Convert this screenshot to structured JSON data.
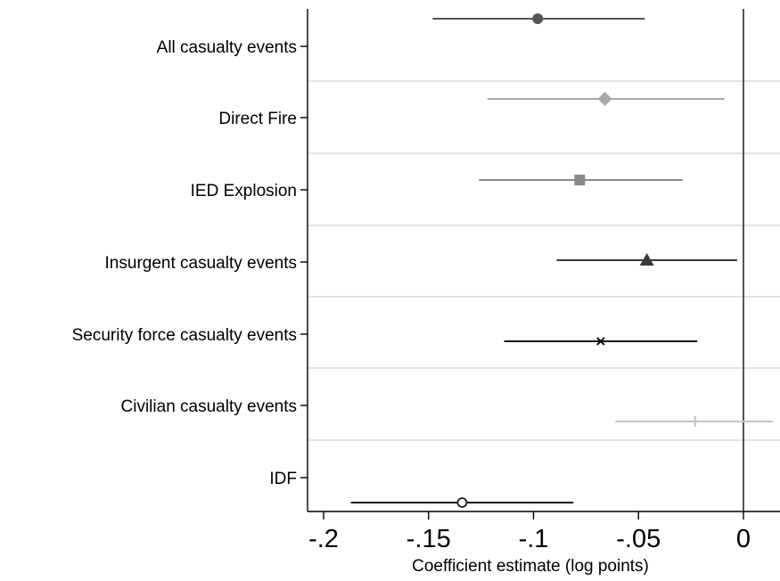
{
  "chart_data": {
    "type": "scatter",
    "subtype": "coefficient-plot",
    "title": "",
    "xlabel": "Coefficient estimate (log points)",
    "ylabel": "",
    "xlim": [
      -0.2,
      0.015
    ],
    "x_ticks": [
      {
        "value": -0.2,
        "label": "-.2"
      },
      {
        "value": -0.15,
        "label": "-.15"
      },
      {
        "value": -0.1,
        "label": "-.1"
      },
      {
        "value": -0.05,
        "label": "-.05"
      },
      {
        "value": 0,
        "label": "0"
      }
    ],
    "reference_line_x": 0,
    "grid": true,
    "legend": "none",
    "series": [
      {
        "category": "All casualty events",
        "estimate": -0.098,
        "ci_low": -0.148,
        "ci_high": -0.047,
        "marker": "circle-filled",
        "color": "#555555"
      },
      {
        "category": "Direct Fire",
        "estimate": -0.066,
        "ci_low": -0.122,
        "ci_high": -0.009,
        "marker": "diamond-filled",
        "color": "#a8a8a8"
      },
      {
        "category": "IED Explosion",
        "estimate": -0.078,
        "ci_low": -0.126,
        "ci_high": -0.029,
        "marker": "square-filled",
        "color": "#8a8a8a"
      },
      {
        "category": "Insurgent casualty events",
        "estimate": -0.046,
        "ci_low": -0.089,
        "ci_high": -0.003,
        "marker": "triangle-filled",
        "color": "#3a3a3a"
      },
      {
        "category": "Security force casualty events",
        "estimate": -0.068,
        "ci_low": -0.114,
        "ci_high": -0.022,
        "marker": "x",
        "color": "#111111"
      },
      {
        "category": "Civilian casualty events",
        "estimate": -0.023,
        "ci_low": -0.061,
        "ci_high": 0.014,
        "marker": "plus",
        "color": "#c4c4c4"
      },
      {
        "category": "IDF",
        "estimate": -0.134,
        "ci_low": -0.187,
        "ci_high": -0.081,
        "marker": "circle-hollow",
        "color": "#1a1a1a"
      }
    ]
  }
}
